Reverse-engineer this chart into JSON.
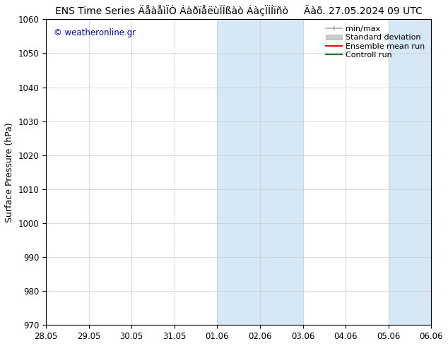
{
  "title": "ENS Time Series ÄåàåìÏÒ ÁàðïåëùÏÍßàò ÁàçÏÍÍïñò     Äàõ. 27.05.2024 09 UTC",
  "ylabel": "Surface Pressure (hPa)",
  "ylim": [
    970,
    1060
  ],
  "yticks": [
    970,
    980,
    990,
    1000,
    1010,
    1020,
    1030,
    1040,
    1050,
    1060
  ],
  "watermark": "© weatheronline.gr",
  "watermark_color": "#0000cc",
  "background_color": "#ffffff",
  "plot_bg_color": "#ffffff",
  "x_tick_labels": [
    "28.05",
    "29.05",
    "30.05",
    "31.05",
    "01.06",
    "02.06",
    "03.06",
    "04.06",
    "05.06",
    "06.06"
  ],
  "x_tick_positions": [
    0,
    1,
    2,
    3,
    4,
    5,
    6,
    7,
    8,
    9
  ],
  "shaded_band_1_xstart": 4.0,
  "shaded_band_1_xend": 6.0,
  "shaded_band_2_xstart": 8.0,
  "shaded_band_2_xend": 9.0,
  "shaded_color": "#d6e8f5",
  "font_size_title": 10,
  "font_size_axis": 9,
  "font_size_ticks": 8.5,
  "font_size_legend": 8,
  "grid_color": "#cccccc",
  "axis_color": "#000000",
  "minmax_color": "#aaaaaa",
  "std_color": "#cccccc",
  "ensemble_color": "#ff0000",
  "control_color": "#008800"
}
